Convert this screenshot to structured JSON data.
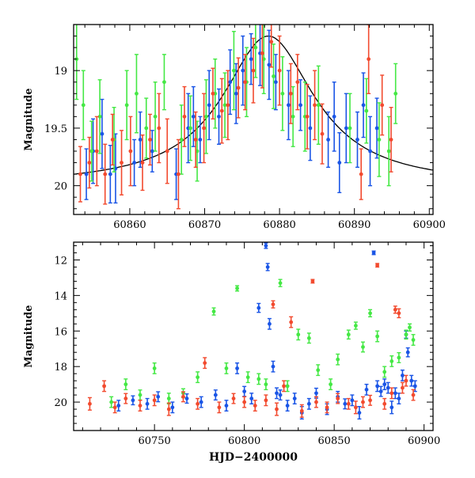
{
  "colors": {
    "blue": "#1a55e6",
    "green": "#44e844",
    "red": "#f24a2e",
    "model": "#000000",
    "axis": "#000000"
  },
  "chart_data": [
    {
      "type": "scatter",
      "panel": "top",
      "xlabel": "",
      "ylabel": "Magnitude",
      "xlim": [
        60852.5,
        60900.5
      ],
      "ylim": [
        20.25,
        18.6
      ],
      "y_inverted": true,
      "xticks": [
        60860,
        60870,
        60880,
        60890,
        60900
      ],
      "yticks": [
        19,
        19.5,
        20
      ],
      "xtick_labels": [
        "60860",
        "60870",
        "60880",
        "60890",
        "60900"
      ],
      "ytick_labels": [
        "19",
        "19.5",
        "20"
      ],
      "model_curve": {
        "peak_x": 60878.5,
        "peak_mag": 18.7,
        "base_mag": 20.0,
        "color": "model"
      },
      "series": [
        {
          "color": "blue",
          "x": [
            60854.2,
            60855.1,
            60856.3,
            60857.4,
            60858.1,
            60860.6,
            60861.4,
            60863.0,
            60866.2,
            60867.8,
            60868.5,
            60869.4,
            60870.6,
            60871.9,
            60873.4,
            60874.2,
            60875.1,
            60876.2,
            60877.4,
            60878.6,
            60879.5,
            60881.2,
            60882.8,
            60884.1,
            60886.5,
            60887.3,
            60888.0,
            60888.9,
            60890.4,
            60891.2,
            60892.1,
            60893.0
          ],
          "y": [
            19.9,
            19.7,
            19.55,
            19.9,
            19.85,
            19.8,
            19.6,
            19.7,
            19.9,
            19.5,
            19.4,
            19.6,
            19.3,
            19.4,
            19.1,
            19.2,
            19.0,
            18.9,
            18.85,
            18.95,
            19.1,
            19.3,
            19.3,
            19.5,
            19.6,
            19.4,
            19.8,
            19.5,
            19.6,
            19.3,
            19.7,
            19.5
          ],
          "err": [
            0.22,
            0.28,
            0.3,
            0.25,
            0.3,
            0.2,
            0.24,
            0.18,
            0.22,
            0.3,
            0.26,
            0.2,
            0.3,
            0.24,
            0.28,
            0.26,
            0.3,
            0.22,
            0.28,
            0.3,
            0.24,
            0.3,
            0.22,
            0.28,
            0.24,
            0.3,
            0.26,
            0.3,
            0.24,
            0.28,
            0.3,
            0.26
          ]
        },
        {
          "color": "green",
          "x": [
            60852.9,
            60853.8,
            60854.9,
            60856.0,
            60857.9,
            60859.6,
            60860.9,
            60862.2,
            60863.4,
            60864.6,
            60866.9,
            60868.1,
            60869.0,
            60870.2,
            60871.4,
            60872.7,
            60873.9,
            60875.6,
            60876.8,
            60877.9,
            60879.2,
            60880.4,
            60881.8,
            60883.4,
            60885.2,
            60889.4,
            60891.6,
            60893.3,
            60894.6,
            60895.5
          ],
          "y": [
            18.9,
            19.3,
            19.7,
            19.4,
            19.6,
            19.3,
            19.2,
            19.5,
            19.4,
            19.1,
            19.6,
            19.5,
            19.7,
            19.4,
            19.2,
            19.3,
            19.0,
            19.1,
            18.8,
            18.9,
            19.05,
            19.2,
            19.4,
            19.4,
            19.3,
            19.5,
            19.35,
            19.6,
            19.7,
            19.2
          ],
          "err": [
            0.35,
            0.3,
            0.26,
            0.32,
            0.28,
            0.3,
            0.34,
            0.26,
            0.3,
            0.24,
            0.3,
            0.28,
            0.26,
            0.32,
            0.3,
            0.28,
            0.34,
            0.3,
            0.26,
            0.3,
            0.28,
            0.32,
            0.26,
            0.3,
            0.34,
            0.3,
            0.28,
            0.32,
            0.3,
            0.26
          ]
        },
        {
          "color": "red",
          "x": [
            60853.4,
            60854.6,
            60855.6,
            60856.7,
            60857.7,
            60858.9,
            60860.1,
            60861.7,
            60862.7,
            60863.9,
            60865.0,
            60866.5,
            60867.3,
            60868.8,
            60869.9,
            60871.1,
            60872.3,
            60873.1,
            60874.5,
            60875.4,
            60876.5,
            60877.7,
            60878.9,
            60880.0,
            60881.5,
            60882.4,
            60883.7,
            60884.7,
            60885.7,
            60890.9,
            60891.9,
            60893.7,
            60894.9
          ],
          "y": [
            19.9,
            19.8,
            19.7,
            19.9,
            19.6,
            19.8,
            19.7,
            19.8,
            19.6,
            19.5,
            19.7,
            19.9,
            19.4,
            19.6,
            19.5,
            19.2,
            19.35,
            19.3,
            19.15,
            19.1,
            19.0,
            18.85,
            18.75,
            19.0,
            19.2,
            19.1,
            19.4,
            19.3,
            19.55,
            19.9,
            18.9,
            19.3,
            19.6
          ],
          "err": [
            0.24,
            0.22,
            0.3,
            0.26,
            0.22,
            0.28,
            0.3,
            0.24,
            0.22,
            0.3,
            0.28,
            0.3,
            0.26,
            0.24,
            0.3,
            0.22,
            0.28,
            0.3,
            0.26,
            0.24,
            0.28,
            0.3,
            0.22,
            0.3,
            0.26,
            0.24,
            0.28,
            0.3,
            0.26,
            0.22,
            0.3,
            0.26,
            0.28
          ]
        }
      ]
    },
    {
      "type": "scatter",
      "panel": "bottom",
      "xlabel": "HJD−2400000",
      "ylabel": "Magnitude",
      "xlim": [
        60705,
        60905
      ],
      "ylim": [
        21.6,
        11.0
      ],
      "y_inverted": true,
      "xticks": [
        60750,
        60800,
        60850,
        60900
      ],
      "yticks": [
        12,
        14,
        16,
        18,
        20
      ],
      "xtick_labels": [
        "60750",
        "60800",
        "60850",
        "60900"
      ],
      "ytick_labels": [
        "12",
        "14",
        "16",
        "18",
        "20"
      ],
      "series": [
        {
          "color": "blue",
          "x": [
            60730,
            60738,
            60746,
            60752,
            60760,
            60768,
            60776,
            60784,
            60790,
            60796,
            60800,
            60804,
            60808,
            60812,
            60813,
            60814,
            60816,
            60818,
            60820,
            60824,
            60828,
            60832,
            60836,
            60840,
            60846,
            60852,
            60856,
            60860,
            60864,
            60868,
            60872,
            60874,
            60876,
            60878,
            60880,
            60882,
            60884,
            60886,
            60888,
            60890,
            60891,
            60893,
            60895
          ],
          "y": [
            20.2,
            19.9,
            20.1,
            19.7,
            20.3,
            19.8,
            20.0,
            19.6,
            20.2,
            18.1,
            19.4,
            19.8,
            14.7,
            11.2,
            12.4,
            15.6,
            18.0,
            19.5,
            19.6,
            20.2,
            19.8,
            20.6,
            20.1,
            19.5,
            20.4,
            19.7,
            20.1,
            19.9,
            20.6,
            19.3,
            11.6,
            19.1,
            19.4,
            19.0,
            19.2,
            20.3,
            19.5,
            19.8,
            18.5,
            16.2,
            17.2,
            18.8,
            19.1
          ],
          "err": [
            0.3,
            0.25,
            0.3,
            0.28,
            0.3,
            0.26,
            0.3,
            0.28,
            0.3,
            0.3,
            0.28,
            0.3,
            0.25,
            0.15,
            0.2,
            0.3,
            0.3,
            0.3,
            0.28,
            0.3,
            0.3,
            0.35,
            0.3,
            0.28,
            0.3,
            0.3,
            0.28,
            0.3,
            0.35,
            0.3,
            0.1,
            0.3,
            0.28,
            0.3,
            0.3,
            0.35,
            0.3,
            0.3,
            0.3,
            0.2,
            0.25,
            0.3,
            0.3
          ]
        },
        {
          "color": "green",
          "x": [
            60726,
            60734,
            60742,
            60750,
            60758,
            60766,
            60774,
            60783,
            60790,
            60796,
            60802,
            60808,
            60812,
            60820,
            60824,
            60830,
            60836,
            60841,
            60848,
            60852,
            60858,
            60862,
            60866,
            60870,
            60874,
            60878,
            60882,
            60886,
            60890,
            60892,
            60894
          ],
          "y": [
            20.0,
            19.0,
            19.6,
            18.1,
            19.8,
            19.5,
            18.6,
            14.9,
            18.1,
            13.6,
            18.6,
            18.7,
            19.0,
            13.3,
            19.1,
            16.2,
            16.4,
            18.2,
            19.0,
            17.6,
            16.2,
            15.7,
            16.9,
            15.0,
            16.3,
            18.3,
            17.7,
            17.5,
            16.2,
            15.8,
            16.5
          ],
          "err": [
            0.3,
            0.3,
            0.28,
            0.3,
            0.3,
            0.25,
            0.3,
            0.2,
            0.3,
            0.15,
            0.3,
            0.3,
            0.3,
            0.2,
            0.3,
            0.3,
            0.28,
            0.3,
            0.3,
            0.3,
            0.25,
            0.2,
            0.28,
            0.2,
            0.3,
            0.3,
            0.3,
            0.28,
            0.25,
            0.2,
            0.3
          ]
        },
        {
          "color": "red",
          "x": [
            60714,
            60722,
            60728,
            60734,
            60742,
            60750,
            60758,
            60766,
            60774,
            60778,
            60786,
            60794,
            60800,
            60806,
            60812,
            60816,
            60818,
            60822,
            60826,
            60832,
            60838,
            60840,
            60846,
            60852,
            60858,
            60862,
            60866,
            60870,
            60874,
            60878,
            60882,
            60884,
            60886,
            60888,
            60890,
            60894
          ],
          "y": [
            20.1,
            19.1,
            20.3,
            19.8,
            20.2,
            19.9,
            20.4,
            19.7,
            20.1,
            17.8,
            20.3,
            19.8,
            20.0,
            20.2,
            19.9,
            14.5,
            20.4,
            19.1,
            15.5,
            20.5,
            13.2,
            20.0,
            20.3,
            19.8,
            20.1,
            20.3,
            20.0,
            19.9,
            12.3,
            20.1,
            19.5,
            14.8,
            15.0,
            19.2,
            18.8,
            19.6
          ],
          "err": [
            0.35,
            0.3,
            0.3,
            0.28,
            0.3,
            0.3,
            0.35,
            0.28,
            0.3,
            0.3,
            0.3,
            0.28,
            0.3,
            0.3,
            0.3,
            0.2,
            0.35,
            0.3,
            0.3,
            0.35,
            0.1,
            0.3,
            0.3,
            0.28,
            0.3,
            0.35,
            0.3,
            0.28,
            0.1,
            0.3,
            0.3,
            0.2,
            0.25,
            0.3,
            0.3,
            0.3
          ]
        }
      ]
    }
  ]
}
